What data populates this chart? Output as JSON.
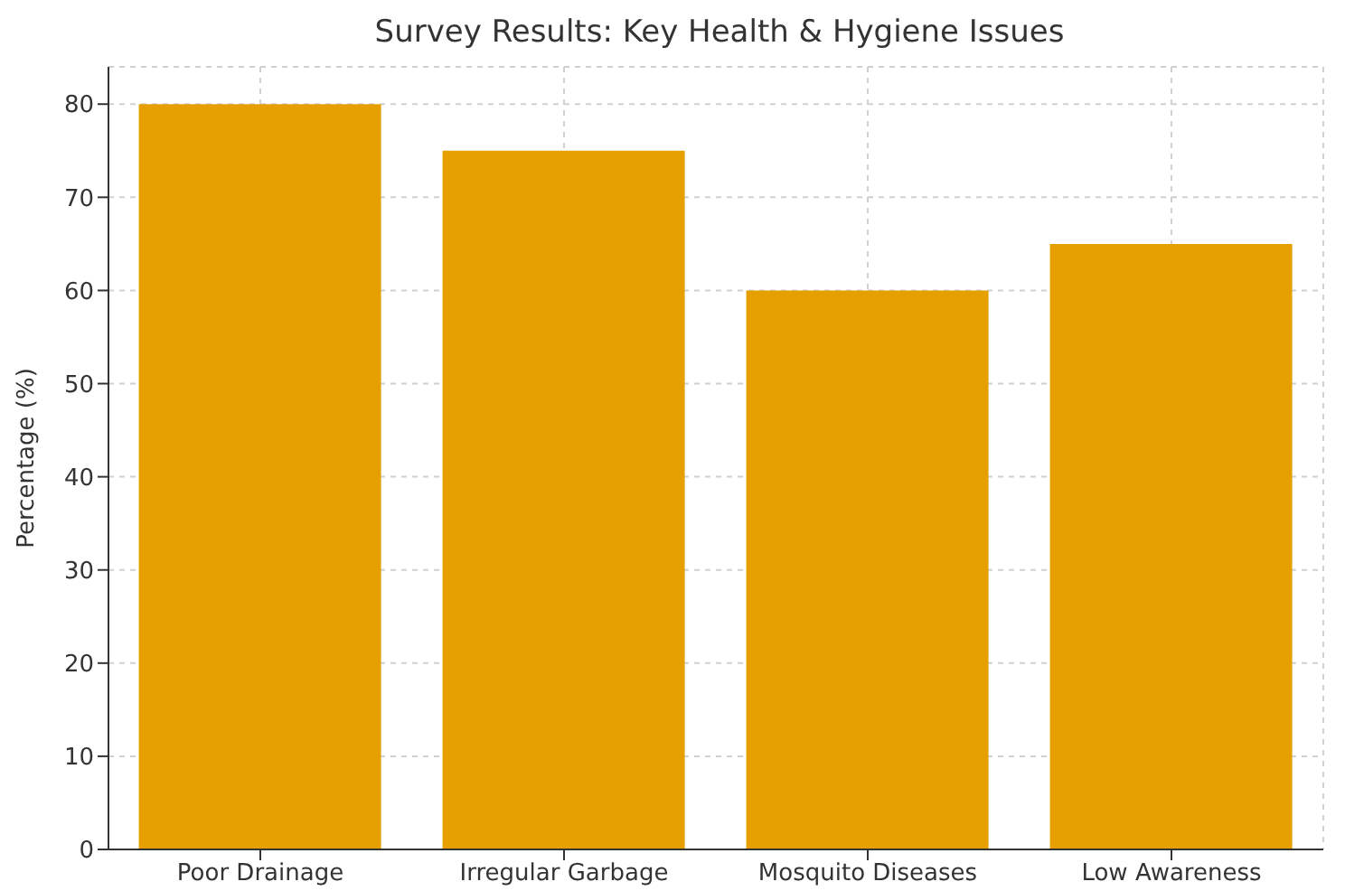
{
  "chart_data": {
    "type": "bar",
    "title": "Survey Results: Key Health & Hygiene Issues",
    "ylabel": "Percentage (%)",
    "categories": [
      "Poor Drainage",
      "Irregular Garbage",
      "Mosquito Diseases",
      "Low Awareness"
    ],
    "values": [
      80,
      75,
      60,
      65
    ],
    "color": "#e5a000",
    "ylim": [
      0,
      84
    ],
    "yticks": [
      0,
      10,
      20,
      30,
      40,
      50,
      60,
      70,
      80
    ],
    "grid": true
  }
}
